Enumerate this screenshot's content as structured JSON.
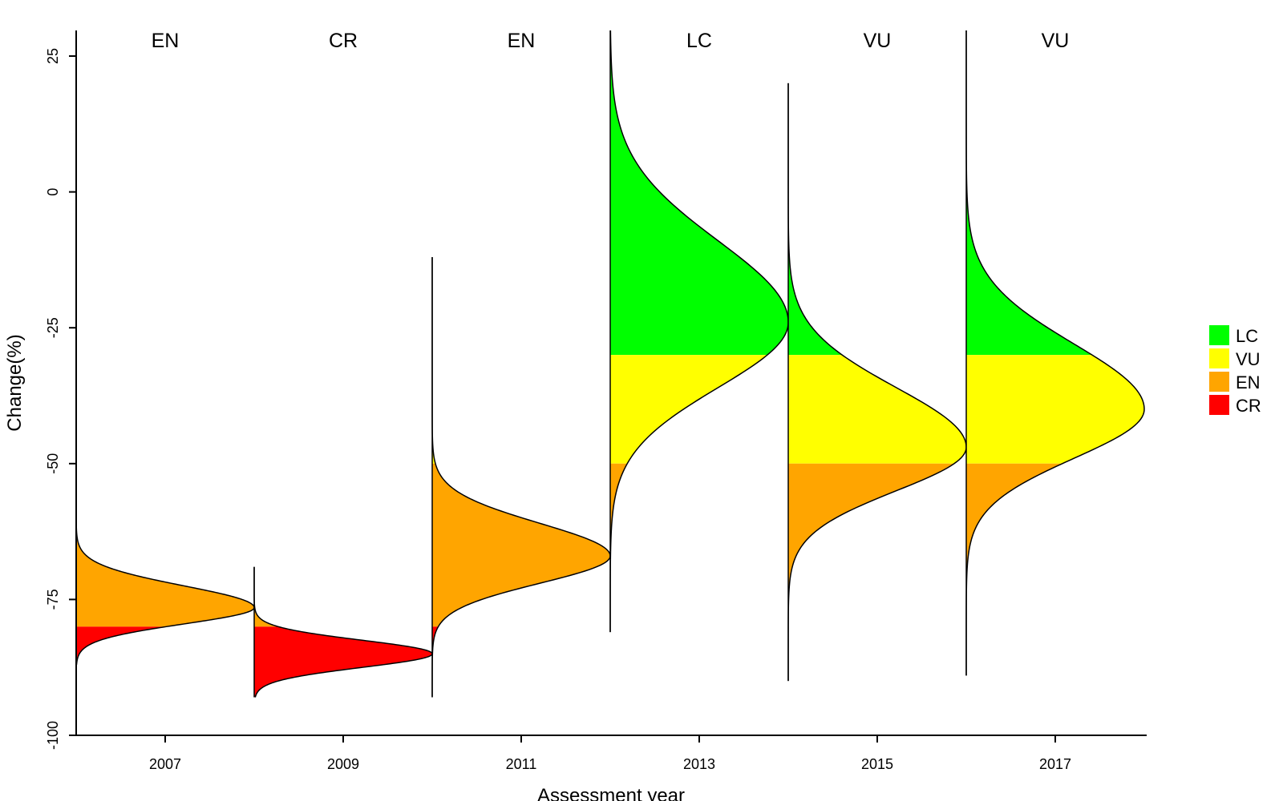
{
  "chart_data": {
    "type": "area",
    "xlabel": "Assessment year",
    "ylabel": "Change(%)",
    "ylim": [
      -100,
      25
    ],
    "yticks": [
      25,
      0,
      -25,
      -50,
      -75,
      -100
    ],
    "categories": [
      "2007",
      "2009",
      "2011",
      "2013",
      "2015",
      "2017"
    ],
    "status_labels": [
      "EN",
      "CR",
      "EN",
      "LC",
      "VU",
      "VU"
    ],
    "thresholds": {
      "LC": -30,
      "VU": -50,
      "EN": -80
    },
    "distributions": [
      {
        "year": "2007",
        "status": "EN",
        "mode": -76.5,
        "sd_up": 4.0,
        "sd_down": 3.0,
        "range": [
          -87,
          -57
        ]
      },
      {
        "year": "2009",
        "status": "CR",
        "mode": -85.0,
        "sd_up": 2.5,
        "sd_down": 2.5,
        "range": [
          -93,
          -69
        ]
      },
      {
        "year": "2011",
        "status": "EN",
        "mode": -67.0,
        "sd_up": 6.0,
        "sd_down": 5.0,
        "range": [
          -93,
          -12
        ]
      },
      {
        "year": "2013",
        "status": "LC",
        "mode": -24.0,
        "sd_up": 15.0,
        "sd_down": 12.0,
        "range": [
          -81,
          30
        ]
      },
      {
        "year": "2015",
        "status": "VU",
        "mode": -47.0,
        "sd_up": 11.0,
        "sd_down": 8.0,
        "range": [
          -90,
          20
        ]
      },
      {
        "year": "2017",
        "status": "VU",
        "mode": -40.0,
        "sd_up": 12.0,
        "sd_down": 9.0,
        "range": [
          -89,
          30
        ]
      }
    ],
    "legend": {
      "placement": "right",
      "entries": [
        {
          "label": "LC",
          "color": "#00FF00"
        },
        {
          "label": "VU",
          "color": "#FFFF00"
        },
        {
          "label": "EN",
          "color": "#FFA500"
        },
        {
          "label": "CR",
          "color": "#FF0000"
        }
      ]
    },
    "grid": false
  }
}
